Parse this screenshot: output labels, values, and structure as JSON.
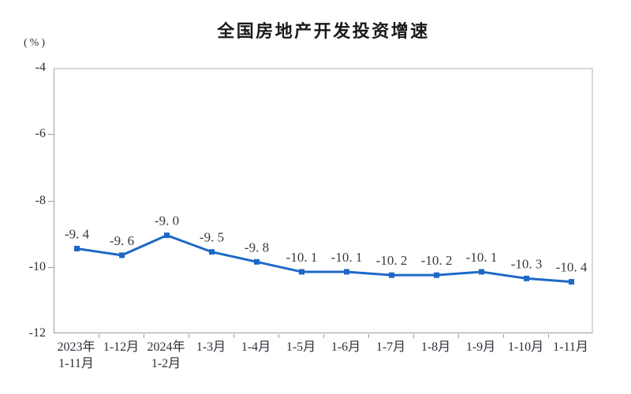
{
  "chart_data": {
    "type": "line",
    "title": "全国房地产开发投资增速",
    "unit_label": "(%)",
    "categories": [
      [
        "2023年",
        "1-11月"
      ],
      [
        "1-12月"
      ],
      [
        "2024年",
        "1-2月"
      ],
      [
        "1-3月"
      ],
      [
        "1-4月"
      ],
      [
        "1-5月"
      ],
      [
        "1-6月"
      ],
      [
        "1-7月"
      ],
      [
        "1-8月"
      ],
      [
        "1-9月"
      ],
      [
        "1-10月"
      ],
      [
        "1-11月"
      ]
    ],
    "values": [
      -9.4,
      -9.6,
      -9.0,
      -9.5,
      -9.8,
      -10.1,
      -10.1,
      -10.2,
      -10.2,
      -10.1,
      -10.3,
      -10.4
    ],
    "point_labels": [
      "-9. 4",
      "-9. 6",
      "-9. 0",
      "-9. 5",
      "-9. 8",
      "-10. 1",
      "-10. 1",
      "-10. 2",
      "-10. 2",
      "-10. 1",
      "-10. 3",
      "-10. 4"
    ],
    "xlabel": "",
    "ylabel": "(%)",
    "ylim": [
      -12,
      -4
    ],
    "yticks": [
      -4,
      -6,
      -8,
      -10,
      -12
    ],
    "grid": false,
    "legend_position": "none",
    "colors": {
      "line": "#1e68c7",
      "marker": "#1e68c7",
      "axis": "#9b9b9b",
      "plot_border": "#d8d8d8",
      "text": "#2e2e38",
      "point_label": "#3a3a3a",
      "title": "#1a1a1a"
    }
  }
}
